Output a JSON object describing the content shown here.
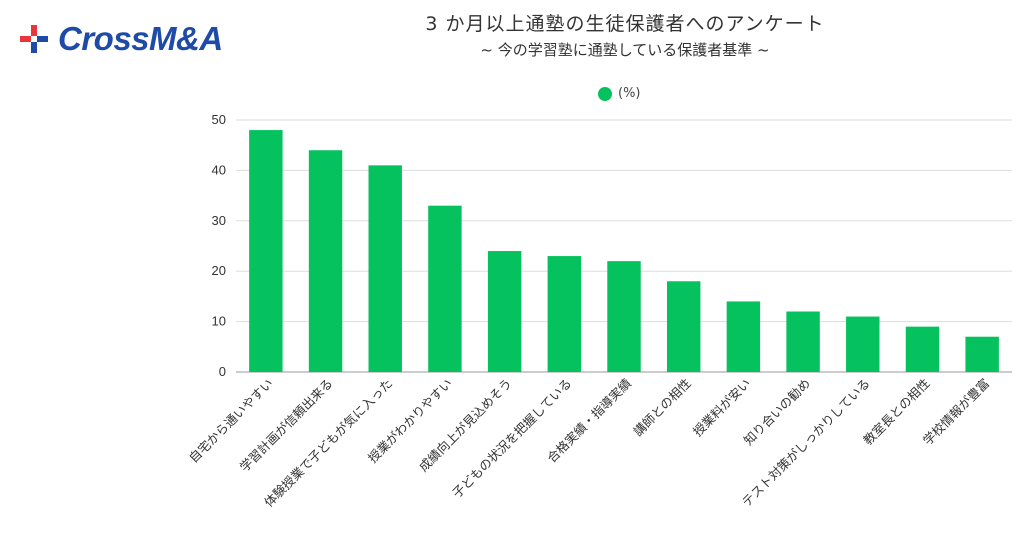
{
  "brand": {
    "logo_text": "CrossM&A",
    "logo_blue": "#1e4aa8",
    "logo_red": "#e8363b"
  },
  "chart_data": {
    "type": "bar",
    "title": "3 か月以上通塾の生徒保護者へのアンケート",
    "subtitle": "~ 今の学習塾に通塾している保護者基準 ~",
    "series": [
      {
        "name": "(%)",
        "color": "#05c15e",
        "values": [
          48,
          44,
          41,
          33,
          24,
          23,
          22,
          18,
          14,
          12,
          11,
          9,
          7
        ]
      }
    ],
    "categories": [
      "自宅から通いやすい",
      "学習計画が信頼出来る",
      "体験授業で子どもが気に入った",
      "授業がわかりやすい",
      "成績向上が見込めそう",
      "子どもの状況を把握している",
      "合格実績・指導実績",
      "講師との相性",
      "授業料が安い",
      "知り合いの勧め",
      "テスト対策がしっかりしている",
      "教室長との相性",
      "学校情報が豊富"
    ],
    "ylim": [
      0,
      50
    ],
    "yticks": [
      0,
      10,
      20,
      30,
      40,
      50
    ],
    "grid": true,
    "legend": "top-center"
  }
}
